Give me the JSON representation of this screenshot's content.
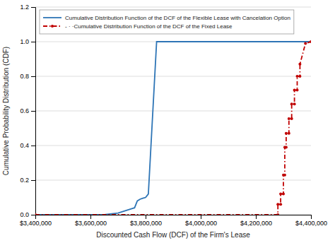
{
  "chart_data": {
    "type": "line",
    "xlabel": "Discounted Cash Flow (DCF) of the Firm's Lease",
    "ylabel": "Cumulative Probability Distribution (CDF)",
    "xlim": [
      3400000,
      4400000
    ],
    "ylim": [
      0,
      1.2
    ],
    "xticks": [
      {
        "value": 3400000,
        "label": "$3,400,000"
      },
      {
        "value": 3600000,
        "label": "$3,600,000"
      },
      {
        "value": 3800000,
        "label": "$3,800,000"
      },
      {
        "value": 4000000,
        "label": "$4,000,000"
      },
      {
        "value": 4200000,
        "label": "$4,200,000"
      },
      {
        "value": 4400000,
        "label": "$4,400,000"
      }
    ],
    "yticks": [
      {
        "value": 0,
        "label": "0.0"
      },
      0.2,
      0.4,
      0.6,
      0.8,
      {
        "value": 1.0,
        "label": "1.0"
      },
      1.2
    ],
    "grid": "y",
    "legend": "upper left",
    "series": [
      {
        "name": "Cumulative Distribution  Function of the DCF of the Flexible Lease with Cancelation Option",
        "color": "#2E75B6",
        "line_style": "solid",
        "x": [
          3400000,
          3650000,
          3660000,
          3700000,
          3710000,
          3720000,
          3730000,
          3740000,
          3750000,
          3760000,
          3770000,
          3780000,
          3790000,
          3800000,
          3810000,
          3840000,
          3850000,
          4400000
        ],
        "values": [
          0.0,
          0.0,
          0.002,
          0.01,
          0.015,
          0.02,
          0.025,
          0.03,
          0.035,
          0.04,
          0.08,
          0.09,
          0.095,
          0.1,
          0.12,
          1.0,
          1.0,
          1.0
        ]
      },
      {
        "name": "- · ·Cumulative Distribution  Function of the DCF of the Fixed Lease",
        "color": "#C00000",
        "line_style": "dashdot",
        "marker": "point",
        "x": [
          3400000,
          4280000,
          4280000,
          4290000,
          4290000,
          4300000,
          4300000,
          4305000,
          4305000,
          4310000,
          4310000,
          4320000,
          4320000,
          4330000,
          4330000,
          4340000,
          4340000,
          4350000,
          4350000,
          4360000,
          4360000,
          4380000,
          4400000
        ],
        "values": [
          0.0,
          0.0,
          0.06,
          0.06,
          0.12,
          0.12,
          0.23,
          0.23,
          0.39,
          0.39,
          0.47,
          0.47,
          0.555,
          0.555,
          0.64,
          0.64,
          0.72,
          0.72,
          0.8,
          0.8,
          0.87,
          0.99,
          1.0
        ]
      }
    ]
  }
}
